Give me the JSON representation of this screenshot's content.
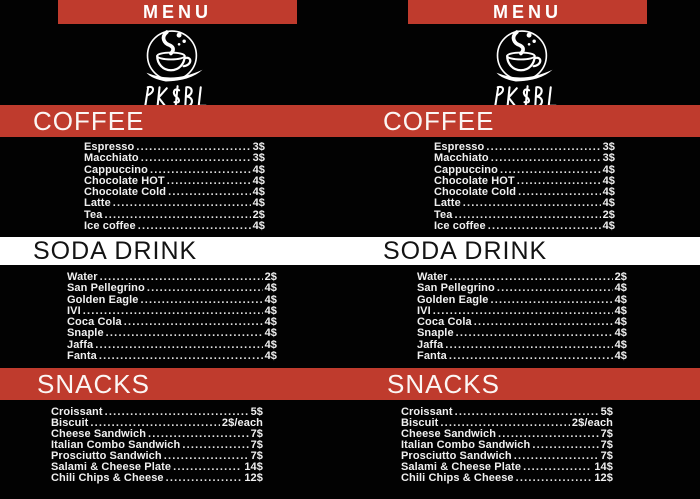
{
  "theme": {
    "red": "#bf3b2d",
    "background": "#020202",
    "text_light": "#f0f0f0",
    "text_dark": "#131313"
  },
  "menu": {
    "banner_label": "MENU",
    "logo": {
      "brand": "PK&BL",
      "icon": "coffee-cup-with-steam"
    },
    "sections": [
      {
        "title": "COFFEE",
        "style": "red",
        "items": [
          {
            "name": "Espresso",
            "price": "3$"
          },
          {
            "name": "Macchiato",
            "price": "3$"
          },
          {
            "name": "Cappuccino",
            "price": "4$"
          },
          {
            "name": "Chocolate HOT",
            "price": "4$"
          },
          {
            "name": "Chocolate Cold",
            "price": "4$"
          },
          {
            "name": "Latte",
            "price": "4$"
          },
          {
            "name": "Tea",
            "price": "2$"
          },
          {
            "name": "Ice coffee",
            "price": "4$"
          }
        ]
      },
      {
        "title": "SODA DRINK",
        "style": "white",
        "items": [
          {
            "name": "Water",
            "price": "2$"
          },
          {
            "name": "San Pellegrino",
            "price": "4$"
          },
          {
            "name": "Golden Eagle",
            "price": "4$"
          },
          {
            "name": "IVI",
            "price": "4$"
          },
          {
            "name": "Coca Cola",
            "price": "4$"
          },
          {
            "name": "Snaple",
            "price": "4$"
          },
          {
            "name": "Jaffa",
            "price": "4$"
          },
          {
            "name": "Fanta",
            "price": "4$"
          }
        ]
      },
      {
        "title": "SNACKS",
        "style": "red",
        "items": [
          {
            "name": "Croissant",
            "price": "5$"
          },
          {
            "name": "Biscuit",
            "price": "2$/each"
          },
          {
            "name": "Cheese Sandwich",
            "price": "7$"
          },
          {
            "name": "Italian Combo Sandwich",
            "price": "7$"
          },
          {
            "name": "Prosciutto Sandwich",
            "price": "7$"
          },
          {
            "name": "Salami & Cheese Plate",
            "price": "14$"
          },
          {
            "name": "Chili Chips &  Cheese",
            "price": "12$"
          }
        ]
      }
    ]
  }
}
